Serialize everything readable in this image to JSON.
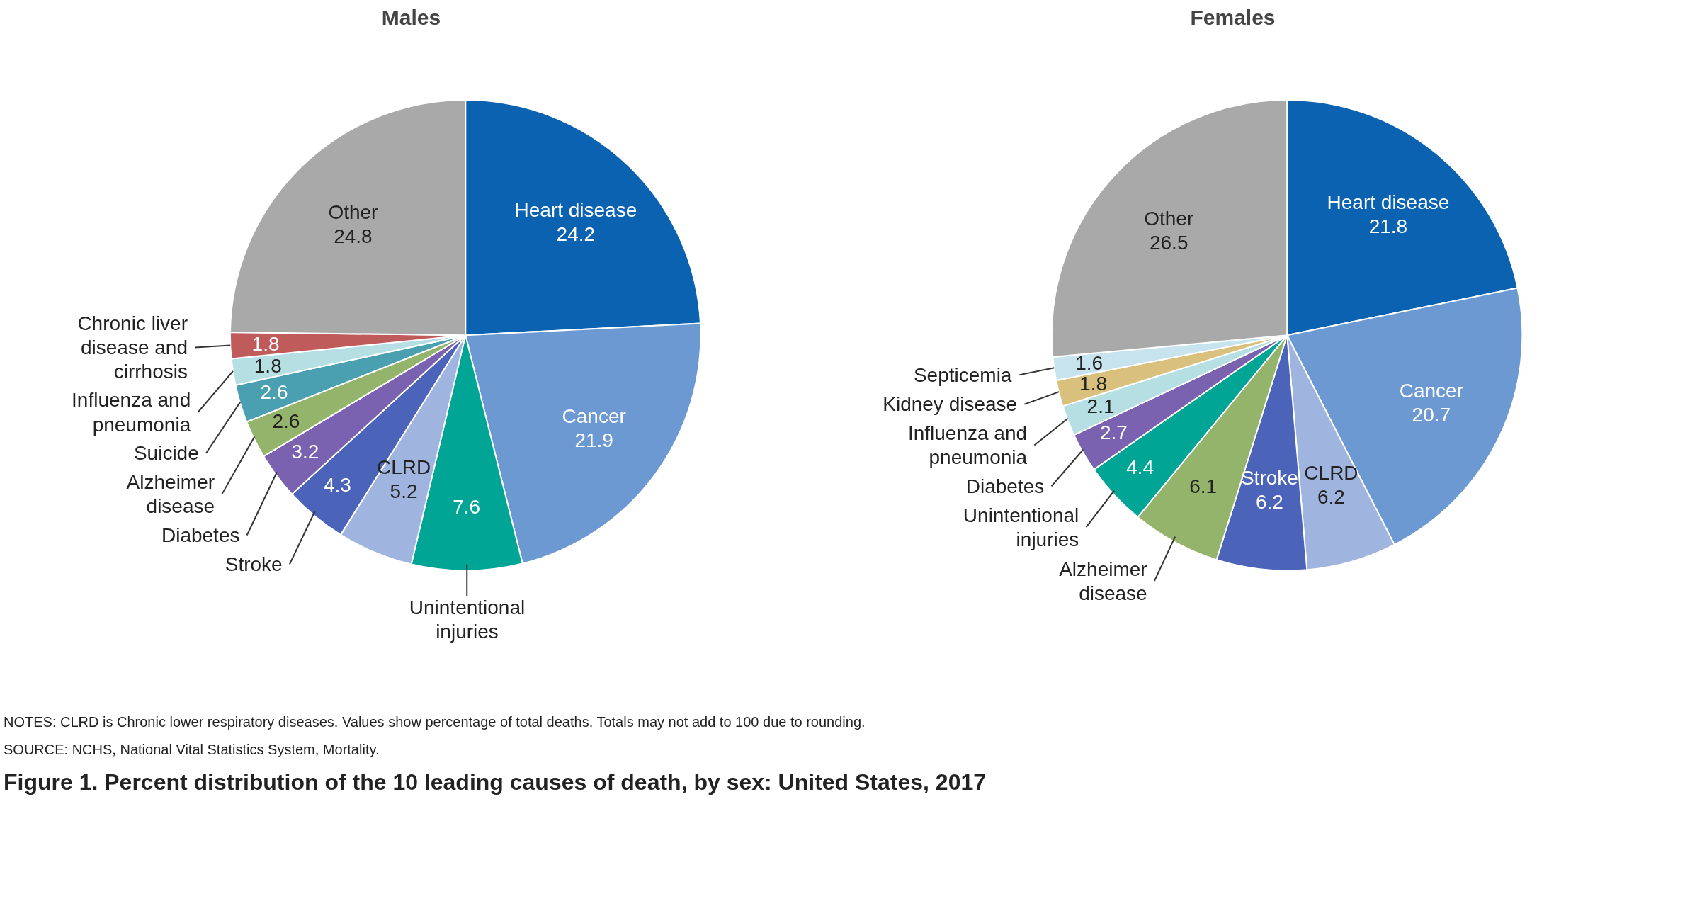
{
  "chart_data": [
    {
      "type": "pie",
      "title": "Males",
      "data_labels": true,
      "categories": [
        "Heart disease",
        "Cancer",
        "Unintentional injuries",
        "CLRD",
        "Stroke",
        "Diabetes",
        "Alzheimer disease",
        "Suicide",
        "Influenza and pneumonia",
        "Chronic liver disease and cirrhosis",
        "Other"
      ],
      "values": [
        24.2,
        21.9,
        7.6,
        5.2,
        4.3,
        3.2,
        2.6,
        2.6,
        1.8,
        1.8,
        24.8
      ],
      "colors": [
        "#0a62b0",
        "#6d99d2",
        "#00a596",
        "#9fb4df",
        "#4b63b8",
        "#7b62b1",
        "#93b46a",
        "#4aa0b0",
        "#b5dfe3",
        "#c05b5b",
        "#a9a9a9"
      ],
      "annotations": [
        "NOTES: CLRD is Chronic lower respiratory diseases. Values show percentage of total deaths. Totals may not add to 100 due to rounding.",
        "SOURCE: NCHS, National Vital Statistics System, Mortality.",
        "Figure 1. Percent distribution of the 10 leading causes of death, by sex: United States, 2017"
      ]
    },
    {
      "type": "pie",
      "title": "Females",
      "data_labels": true,
      "categories": [
        "Heart disease",
        "Cancer",
        "CLRD",
        "Stroke",
        "Alzheimer disease",
        "Unintentional injuries",
        "Diabetes",
        "Influenza and pneumonia",
        "Kidney disease",
        "Septicemia",
        "Other"
      ],
      "values": [
        21.8,
        20.7,
        6.2,
        6.2,
        6.1,
        4.4,
        2.7,
        2.1,
        1.8,
        1.6,
        26.5
      ],
      "colors": [
        "#0a62b0",
        "#6d99d2",
        "#9fb4df",
        "#4b63b8",
        "#93b46a",
        "#00a596",
        "#7b62b1",
        "#b5dfe3",
        "#d9c07c",
        "#c7e3ee",
        "#a9a9a9"
      ]
    }
  ]
}
